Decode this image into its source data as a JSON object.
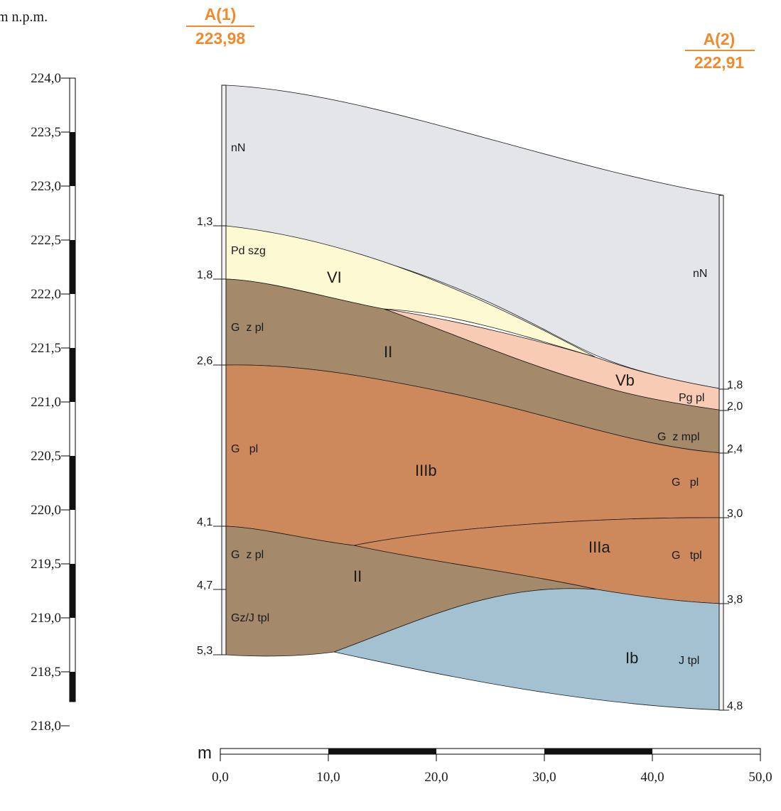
{
  "vertical_unit": "m n.p.m.",
  "horizontal_unit": "m",
  "colors": {
    "nN": "#e3e5e8",
    "VI": "#fdf9d2",
    "Vb": "#f8cbb5",
    "II": "#a4896a",
    "IIIb": "#cd895c",
    "IIIa": "#cd895c",
    "Ib": "#a3c1d1",
    "borehole_label": "#f08a2e"
  },
  "boreholes": [
    {
      "id": "A(1)",
      "elevation": "223,98"
    },
    {
      "id": "A(2)",
      "elevation": "222,91"
    }
  ],
  "elevation_ticks": [
    "224,0",
    "223,5",
    "223,0",
    "222,5",
    "222,0",
    "221,5",
    "221,0",
    "220,5",
    "220,0",
    "219,5",
    "219,0",
    "218,5",
    "218,0"
  ],
  "distance_ticks": [
    "0,0",
    "10,0",
    "20,0",
    "30,0",
    "40,0",
    "50,0"
  ],
  "left_depths": [
    "1,3",
    "1,8",
    "2,6",
    "4,1",
    "4,7",
    "5,3"
  ],
  "right_depths": [
    "1,8",
    "2,0",
    "2,4",
    "3,0",
    "3,8",
    "4,8"
  ],
  "left_soils": [
    "nN",
    "Pd szg",
    "G  z pl",
    "G   pl",
    "G  z pl",
    "Gz/J tpl"
  ],
  "right_soils": [
    "nN",
    "Pg pl",
    "G  z mpl",
    "G   pl",
    "G   tpl",
    "J tpl"
  ],
  "layer_labels": [
    "VI",
    "II",
    "Vb",
    "IIIb",
    "IIIa",
    "II",
    "Ib"
  ]
}
